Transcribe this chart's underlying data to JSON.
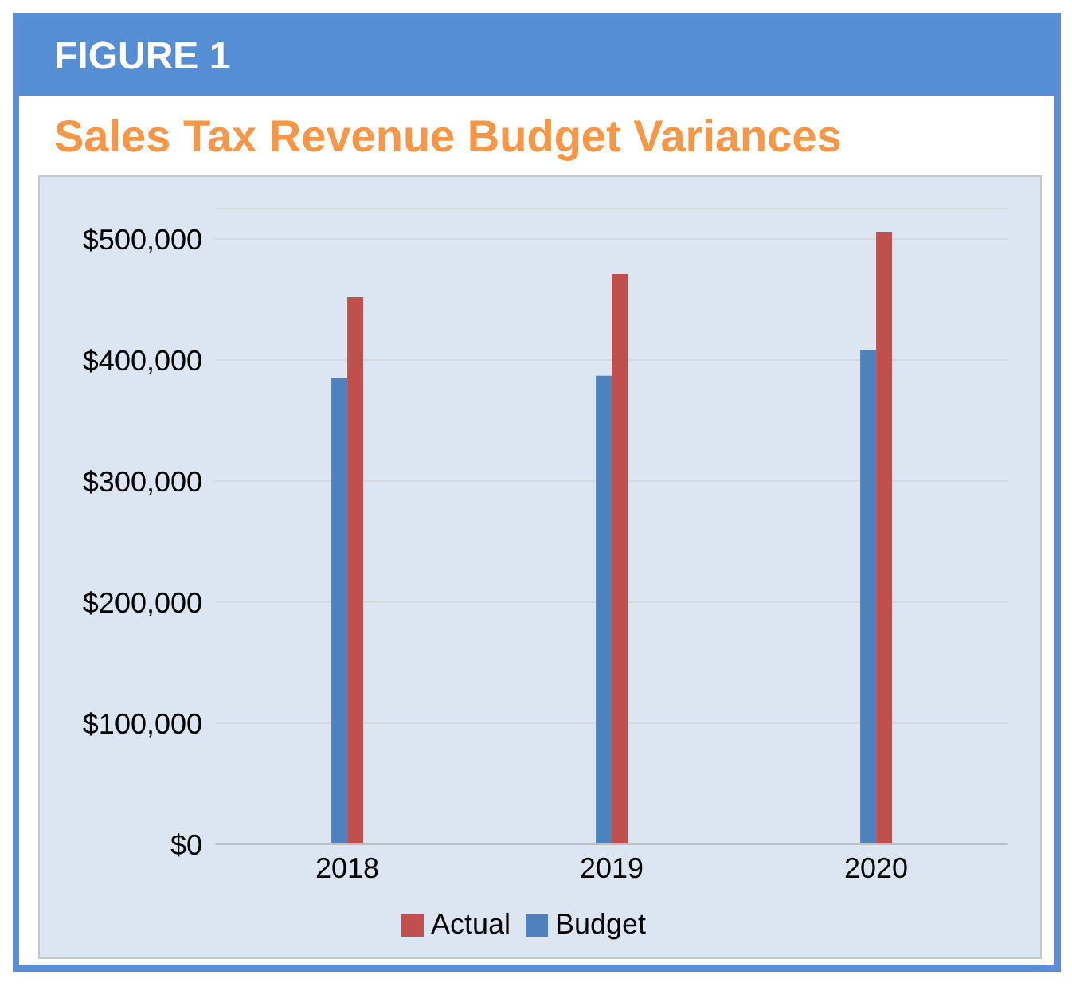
{
  "chart_data": {
    "type": "bar",
    "title": "FIGURE 1",
    "subtitle": "Sales Tax Revenue Budget Variances",
    "categories": [
      "2018",
      "2019",
      "2020"
    ],
    "series": [
      {
        "name": "Budget",
        "color": "#4f81bd",
        "values": [
          385000,
          387000,
          408000
        ]
      },
      {
        "name": "Actual",
        "color": "#c0504d",
        "values": [
          452000,
          471000,
          506000
        ]
      }
    ],
    "ylim": [
      0,
      525000
    ],
    "yticks": [
      {
        "value": 0,
        "label": "$0"
      },
      {
        "value": 100000,
        "label": "$100,000"
      },
      {
        "value": 200000,
        "label": "$200,000"
      },
      {
        "value": 300000,
        "label": "$300,000"
      },
      {
        "value": 400000,
        "label": "$400,000"
      },
      {
        "value": 500000,
        "label": "$500,000"
      }
    ],
    "grid": "y",
    "legend": "bottom"
  }
}
